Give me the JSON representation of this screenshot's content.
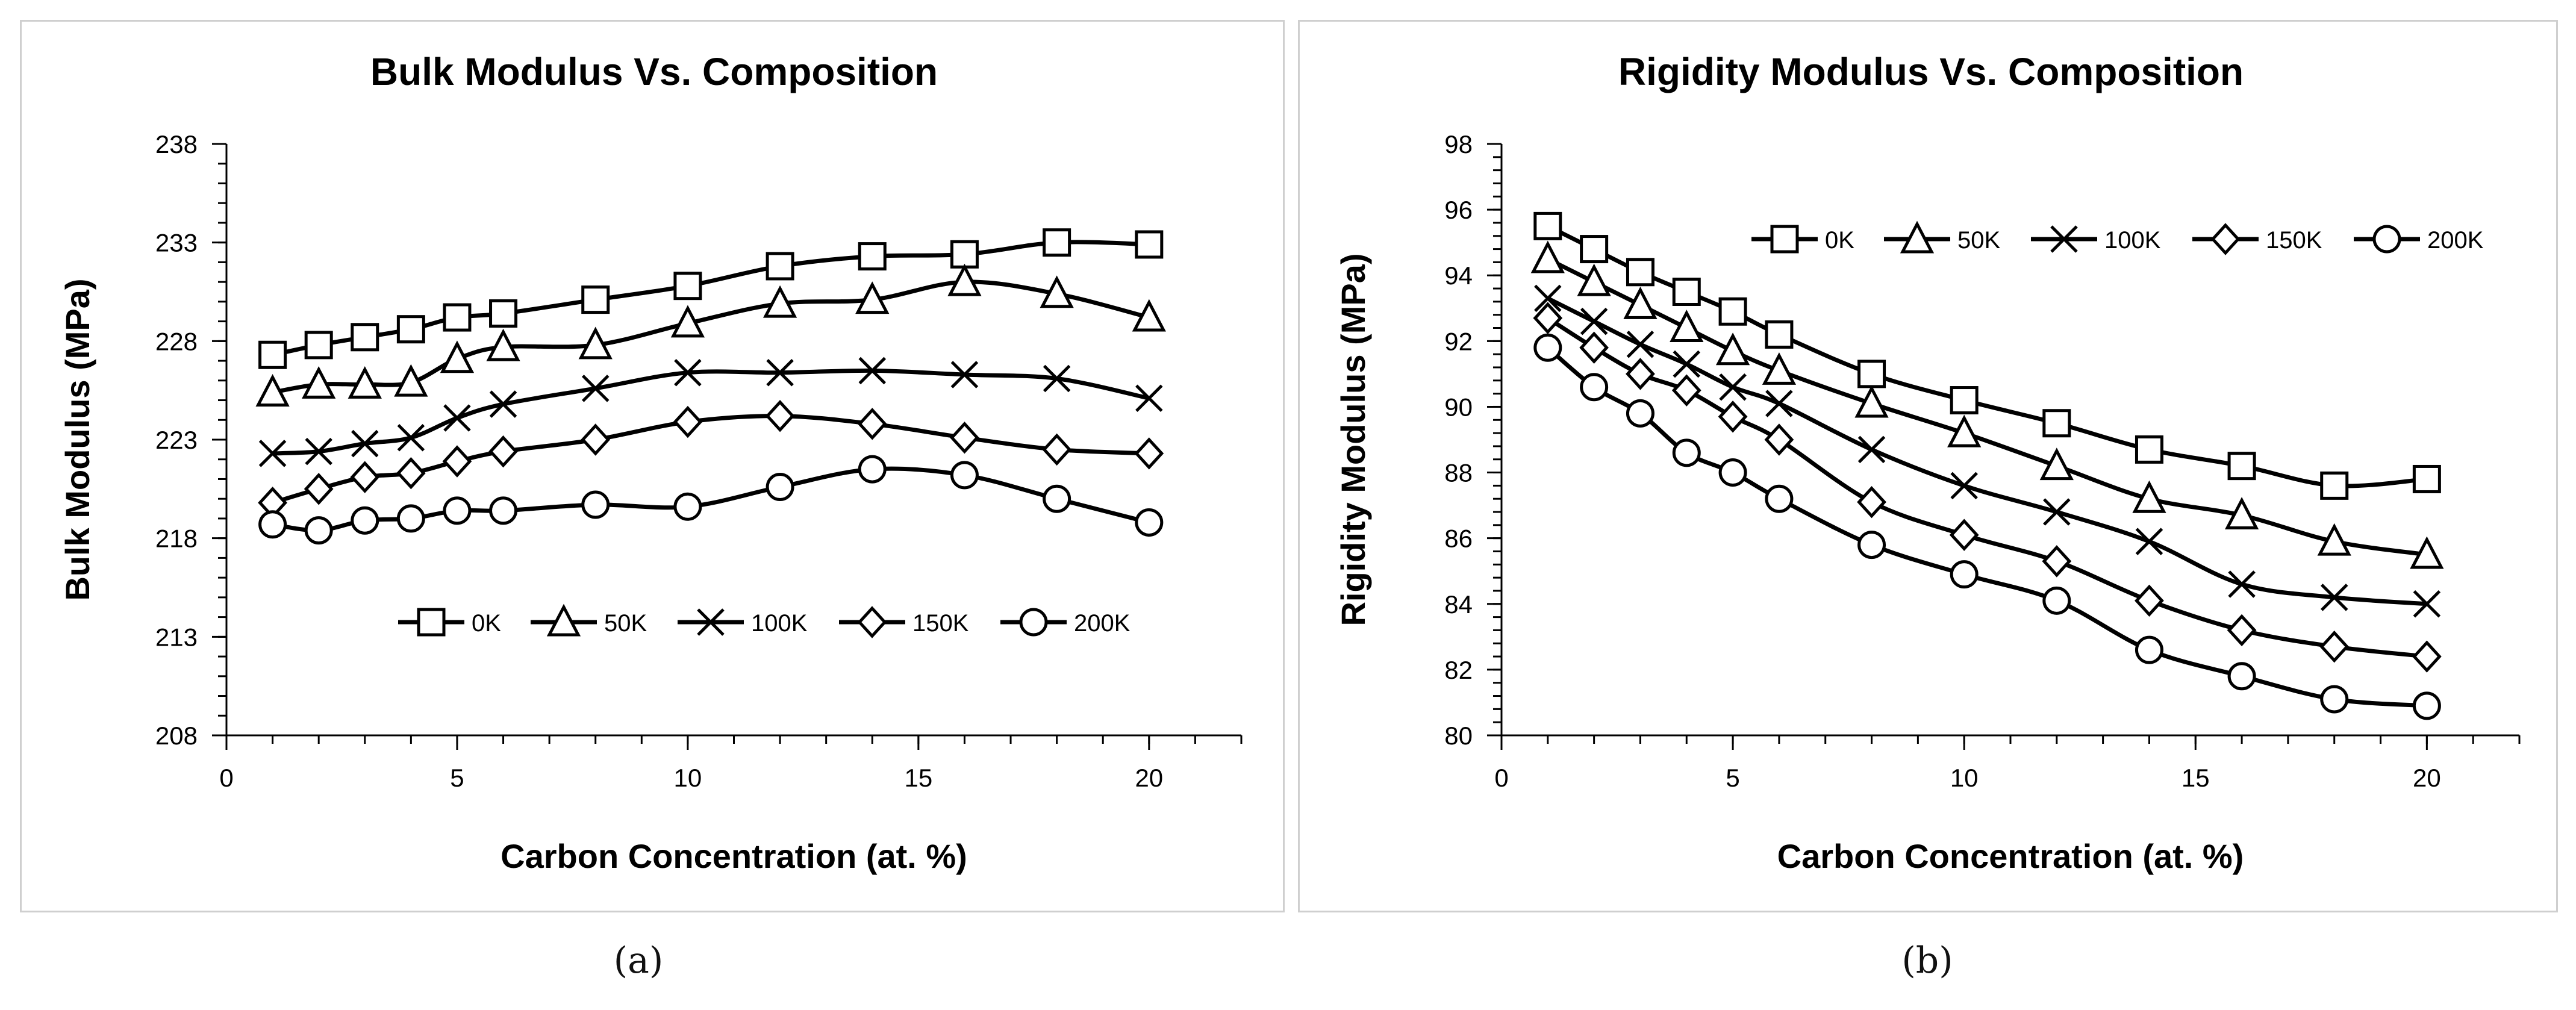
{
  "captions": {
    "a": "(a)",
    "b": "(b)"
  },
  "colors": {
    "line": "#000000",
    "axis": "#000000",
    "frame": "#cfcfcf",
    "background": "#ffffff"
  },
  "chart_data": [
    {
      "id": "a",
      "type": "line",
      "title": "Bulk Modulus Vs. Composition",
      "xlabel": "Carbon Concentration (at. %)",
      "ylabel": "Bulk Modulus (MPa)",
      "xlim": [
        0,
        22
      ],
      "ylim": [
        208,
        238
      ],
      "xticks": [
        0,
        5,
        10,
        15,
        20
      ],
      "yticks": [
        208,
        213,
        218,
        223,
        228,
        233,
        238
      ],
      "legend_position": "bottom-right",
      "x": [
        1,
        2,
        3,
        4,
        5,
        6,
        8,
        10,
        12,
        14,
        16,
        18,
        20
      ],
      "series": [
        {
          "name": "0K",
          "marker": "square",
          "values": [
            227.3,
            227.8,
            228.2,
            228.6,
            229.2,
            229.4,
            230.1,
            230.8,
            231.8,
            232.3,
            232.4,
            233.0,
            232.9
          ]
        },
        {
          "name": "50K",
          "marker": "triangle",
          "values": [
            225.4,
            225.8,
            225.8,
            225.9,
            227.1,
            227.7,
            227.8,
            228.9,
            229.9,
            230.1,
            231.0,
            230.4,
            229.2
          ]
        },
        {
          "name": "100K",
          "marker": "x",
          "values": [
            222.3,
            222.4,
            222.8,
            223.1,
            224.1,
            224.8,
            225.6,
            226.4,
            226.4,
            226.5,
            226.3,
            226.1,
            225.1
          ]
        },
        {
          "name": "150K",
          "marker": "diamond",
          "values": [
            219.8,
            220.5,
            221.1,
            221.3,
            221.9,
            222.4,
            223.0,
            223.9,
            224.2,
            223.8,
            223.1,
            222.5,
            222.3
          ]
        },
        {
          "name": "200K",
          "marker": "circle",
          "values": [
            218.7,
            218.4,
            218.9,
            219.0,
            219.4,
            219.4,
            219.7,
            219.6,
            220.6,
            221.5,
            221.2,
            220.0,
            218.8
          ]
        }
      ]
    },
    {
      "id": "b",
      "type": "line",
      "title": "Rigidity Modulus Vs. Composition",
      "xlabel": "Carbon Concentration (at. %)",
      "ylabel": "Rigidity Modulus (MPa)",
      "xlim": [
        0,
        22
      ],
      "ylim": [
        80,
        98
      ],
      "xticks": [
        0,
        5,
        10,
        15,
        20
      ],
      "yticks": [
        80,
        82,
        84,
        86,
        88,
        90,
        92,
        94,
        96,
        98
      ],
      "legend_position": "top-right",
      "x": [
        1,
        2,
        3,
        4,
        5,
        6,
        8,
        10,
        12,
        14,
        16,
        18,
        20
      ],
      "series": [
        {
          "name": "0K",
          "marker": "square",
          "values": [
            95.5,
            94.8,
            94.1,
            93.5,
            92.9,
            92.2,
            91.0,
            90.2,
            89.5,
            88.7,
            88.2,
            87.6,
            87.8
          ]
        },
        {
          "name": "50K",
          "marker": "triangle",
          "values": [
            94.5,
            93.8,
            93.1,
            92.4,
            91.7,
            91.1,
            90.1,
            89.2,
            88.2,
            87.2,
            86.7,
            85.9,
            85.5
          ]
        },
        {
          "name": "100K",
          "marker": "x",
          "values": [
            93.3,
            92.6,
            91.9,
            91.3,
            90.6,
            90.1,
            88.7,
            87.6,
            86.8,
            85.9,
            84.6,
            84.2,
            84.0
          ]
        },
        {
          "name": "150K",
          "marker": "diamond",
          "values": [
            92.7,
            91.8,
            91.0,
            90.5,
            89.7,
            89.0,
            87.1,
            86.1,
            85.3,
            84.1,
            83.2,
            82.7,
            82.4
          ]
        },
        {
          "name": "200K",
          "marker": "circle",
          "values": [
            91.8,
            90.6,
            89.8,
            88.6,
            88.0,
            87.2,
            85.8,
            84.9,
            84.1,
            82.6,
            81.8,
            81.1,
            80.9
          ]
        }
      ]
    }
  ]
}
